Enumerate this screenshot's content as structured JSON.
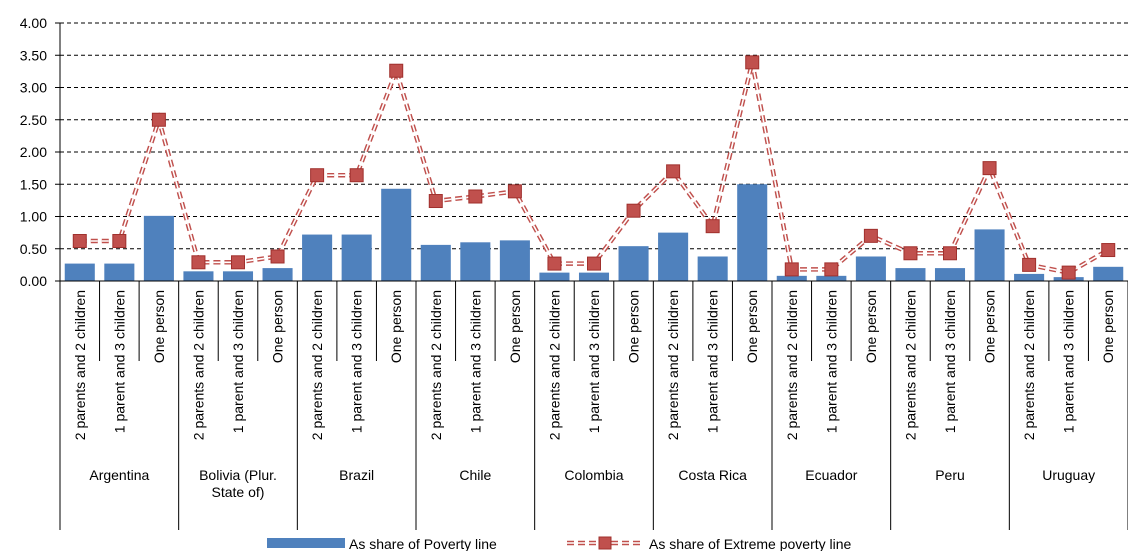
{
  "chart_data": {
    "type": "bar",
    "ylim": [
      0,
      4
    ],
    "yticks": [
      "0.00",
      "0.50",
      "1.00",
      "1.50",
      "2.00",
      "2.50",
      "3.00",
      "3.50",
      "4.00"
    ],
    "grid": true,
    "legend_position": "bottom",
    "colors": {
      "bar": "#4f81bd",
      "line": "#c0504d",
      "marker_fill": "#c0504d",
      "marker_stroke": "#a0302d"
    },
    "groups": [
      {
        "name": "Argentina",
        "categories": [
          "2 parents and 2 children",
          "1 parent and 3 children",
          "One person"
        ]
      },
      {
        "name": "Bolivia (Plur. State of)",
        "label_lines": [
          "Bolivia (Plur.",
          "State of)"
        ],
        "categories": [
          "2 parents and 2 children",
          "1 parent and 3 children",
          "One person"
        ]
      },
      {
        "name": "Brazil",
        "categories": [
          "2 parents and 2 children",
          "1 parent and 3 children",
          "One person"
        ]
      },
      {
        "name": "Chile",
        "categories": [
          "2 parents and 2 children",
          "1 parent and 3 children",
          "One person"
        ]
      },
      {
        "name": "Colombia",
        "categories": [
          "2 parents and 2 children",
          "1 parent and 3 children",
          "One person"
        ]
      },
      {
        "name": "Costa Rica",
        "categories": [
          "2 parents and 2 children",
          "1 parent and 3 children",
          "One person"
        ]
      },
      {
        "name": "Ecuador",
        "categories": [
          "2 parents and 2 children",
          "1 parent and 3 children",
          "One person"
        ]
      },
      {
        "name": "Peru",
        "categories": [
          "2 parents and 2 children",
          "1 parent and 3 children",
          "One person"
        ]
      },
      {
        "name": "Uruguay",
        "categories": [
          "2 parents and 2 children",
          "1 parent and 3 children",
          "One person"
        ]
      }
    ],
    "series": [
      {
        "name": "As share of Poverty line",
        "type": "bar",
        "values": [
          0.27,
          0.27,
          1.01,
          0.15,
          0.15,
          0.2,
          0.72,
          0.72,
          1.43,
          0.56,
          0.6,
          0.63,
          0.13,
          0.13,
          0.54,
          0.75,
          0.38,
          1.5,
          0.08,
          0.08,
          0.38,
          0.2,
          0.2,
          0.8,
          0.11,
          0.06,
          0.22
        ]
      },
      {
        "name": "As share of Extreme poverty line",
        "type": "line",
        "style": "dashed-double",
        "marker": "square",
        "values": [
          0.62,
          0.62,
          2.5,
          0.29,
          0.29,
          0.38,
          1.64,
          1.64,
          3.26,
          1.24,
          1.31,
          1.39,
          0.27,
          0.27,
          1.09,
          1.7,
          0.85,
          3.39,
          0.18,
          0.18,
          0.7,
          0.43,
          0.43,
          1.75,
          0.25,
          0.13,
          0.48
        ]
      }
    ]
  }
}
